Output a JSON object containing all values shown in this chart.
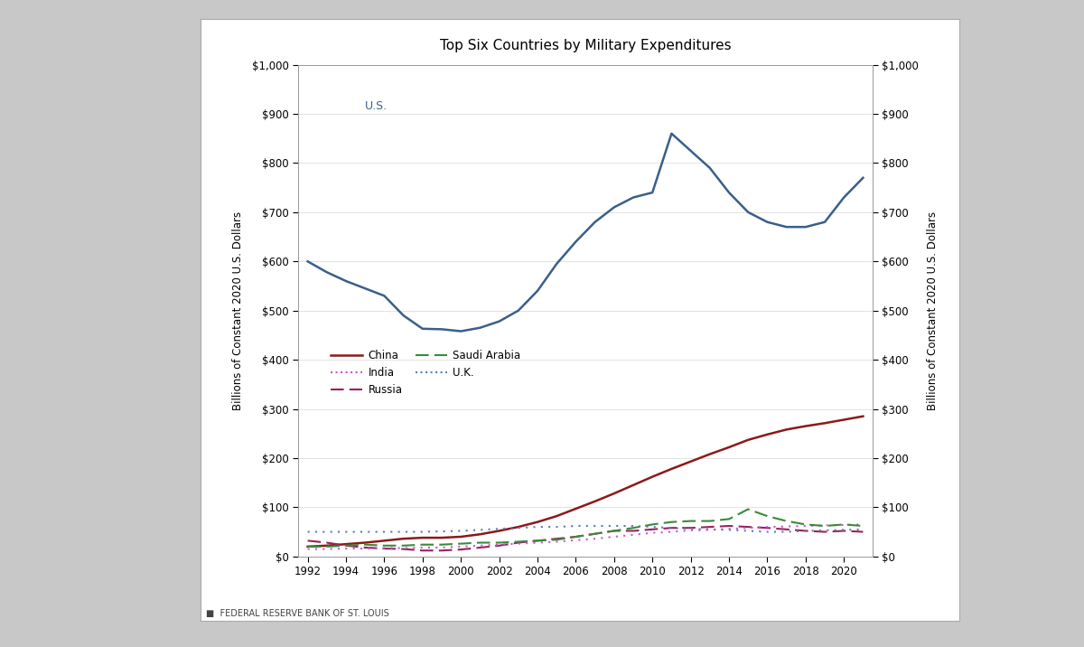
{
  "title": "Top Six Countries by Military Expenditures",
  "ylabel": "Billions of Constant 2020 U.S. Dollars",
  "ylim": [
    0,
    1000
  ],
  "yticks": [
    0,
    100,
    200,
    300,
    400,
    500,
    600,
    700,
    800,
    900,
    1000
  ],
  "years_us": [
    1992,
    1993,
    1994,
    1995,
    1996,
    1997,
    1998,
    1999,
    2000,
    2001,
    2002,
    2003,
    2004,
    2005,
    2006,
    2007,
    2008,
    2009,
    2010,
    2011,
    2012,
    2013,
    2014,
    2015,
    2016,
    2017,
    2018,
    2019,
    2020,
    2021
  ],
  "us": [
    600,
    578,
    560,
    545,
    530,
    490,
    463,
    462,
    458,
    465,
    478,
    500,
    540,
    595,
    640,
    680,
    710,
    730,
    740,
    860,
    825,
    790,
    740,
    700,
    680,
    670,
    670,
    680,
    730,
    770
  ],
  "years_others": [
    1992,
    1993,
    1994,
    1995,
    1996,
    1997,
    1998,
    1999,
    2000,
    2001,
    2002,
    2003,
    2004,
    2005,
    2006,
    2007,
    2008,
    2009,
    2010,
    2011,
    2012,
    2013,
    2014,
    2015,
    2016,
    2017,
    2018,
    2019,
    2020,
    2021
  ],
  "china": [
    20,
    22,
    25,
    28,
    32,
    36,
    38,
    38,
    40,
    45,
    52,
    60,
    70,
    82,
    97,
    112,
    128,
    145,
    162,
    178,
    193,
    208,
    222,
    237,
    248,
    258,
    265,
    271,
    278,
    285
  ],
  "russia": [
    32,
    28,
    22,
    18,
    16,
    15,
    12,
    12,
    14,
    18,
    22,
    28,
    32,
    36,
    40,
    46,
    52,
    52,
    55,
    58,
    58,
    60,
    62,
    60,
    58,
    55,
    52,
    50,
    52,
    50
  ],
  "uk": [
    50,
    50,
    50,
    50,
    50,
    50,
    50,
    51,
    52,
    54,
    56,
    58,
    60,
    60,
    62,
    62,
    62,
    62,
    60,
    58,
    56,
    55,
    54,
    52,
    50,
    50,
    52,
    53,
    54,
    55
  ],
  "india": [
    15,
    15,
    16,
    16,
    17,
    17,
    18,
    18,
    20,
    22,
    24,
    26,
    28,
    30,
    33,
    36,
    40,
    44,
    48,
    50,
    53,
    54,
    56,
    58,
    60,
    61,
    62,
    63,
    64,
    65
  ],
  "saudi_arabia": [
    20,
    20,
    22,
    24,
    22,
    22,
    24,
    24,
    26,
    28,
    28,
    30,
    32,
    34,
    40,
    46,
    52,
    58,
    65,
    70,
    72,
    72,
    76,
    96,
    82,
    72,
    65,
    62,
    65,
    62
  ],
  "us_color": "#3a5f8a",
  "china_color": "#8b1a1a",
  "russia_color": "#9b2060",
  "uk_color": "#5a7db5",
  "india_color": "#cc55cc",
  "saudi_arabia_color": "#3a8a3a",
  "background_color": "#ffffff",
  "outer_background": "#c8c8c8",
  "card_background": "#ffffff",
  "footer_text": "FEDERAL RESERVE BANK OF ST. LOUIS"
}
